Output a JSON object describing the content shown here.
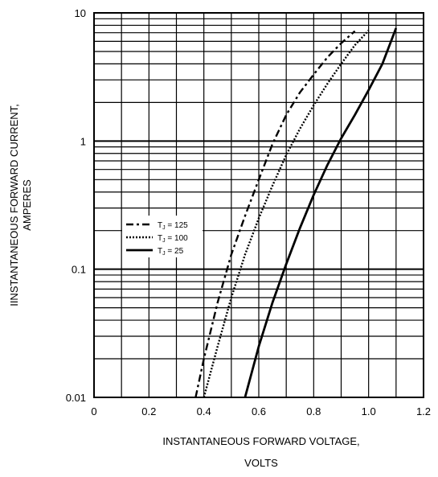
{
  "chart_data": {
    "type": "line",
    "xlabel_lines": [
      "INSTANTANEOUS FORWARD VOLTAGE,",
      "VOLTS"
    ],
    "ylabel_lines": [
      "IINSTANTANEOUS FORWARD CURRENT,",
      "AMPERES"
    ],
    "xlim": [
      0,
      1.2
    ],
    "ylim": [
      0.01,
      10
    ],
    "y_scale": "log",
    "grid": true,
    "legend_position": "left-center",
    "x_ticks": [
      "0",
      "0.2",
      "0.4",
      "0.6",
      "0.8",
      "1.0",
      "1.2"
    ],
    "y_ticks": [
      "0.01",
      "0.1",
      "1",
      "10"
    ],
    "series": [
      {
        "name": "TJ = 125",
        "legend_main": "T",
        "legend_sub": "J",
        "legend_rest": " = 125",
        "style": "dashdot",
        "color": "#000000",
        "points": [
          [
            0.37,
            0.01
          ],
          [
            0.4,
            0.02
          ],
          [
            0.45,
            0.055
          ],
          [
            0.5,
            0.13
          ],
          [
            0.55,
            0.26
          ],
          [
            0.6,
            0.5
          ],
          [
            0.65,
            0.95
          ],
          [
            0.7,
            1.6
          ],
          [
            0.75,
            2.4
          ],
          [
            0.8,
            3.3
          ],
          [
            0.85,
            4.5
          ],
          [
            0.9,
            5.8
          ],
          [
            0.95,
            7.2
          ]
        ]
      },
      {
        "name": "TJ = 100",
        "legend_main": "T",
        "legend_sub": "J",
        "legend_rest": " = 100",
        "style": "dotted",
        "color": "#000000",
        "points": [
          [
            0.4,
            0.01
          ],
          [
            0.45,
            0.025
          ],
          [
            0.5,
            0.06
          ],
          [
            0.55,
            0.13
          ],
          [
            0.6,
            0.25
          ],
          [
            0.65,
            0.45
          ],
          [
            0.7,
            0.78
          ],
          [
            0.75,
            1.25
          ],
          [
            0.8,
            1.9
          ],
          [
            0.85,
            2.8
          ],
          [
            0.9,
            4.0
          ],
          [
            0.95,
            5.6
          ],
          [
            1.0,
            7.3
          ]
        ]
      },
      {
        "name": "TJ = 25",
        "legend_main": "T",
        "legend_sub": "J",
        "legend_rest": " = 25",
        "style": "solid",
        "color": "#000000",
        "points": [
          [
            0.55,
            0.01
          ],
          [
            0.6,
            0.025
          ],
          [
            0.65,
            0.055
          ],
          [
            0.7,
            0.11
          ],
          [
            0.75,
            0.21
          ],
          [
            0.8,
            0.38
          ],
          [
            0.85,
            0.65
          ],
          [
            0.9,
            1.05
          ],
          [
            0.95,
            1.6
          ],
          [
            1.0,
            2.5
          ],
          [
            1.05,
            4.0
          ],
          [
            1.1,
            7.6
          ]
        ]
      }
    ]
  }
}
